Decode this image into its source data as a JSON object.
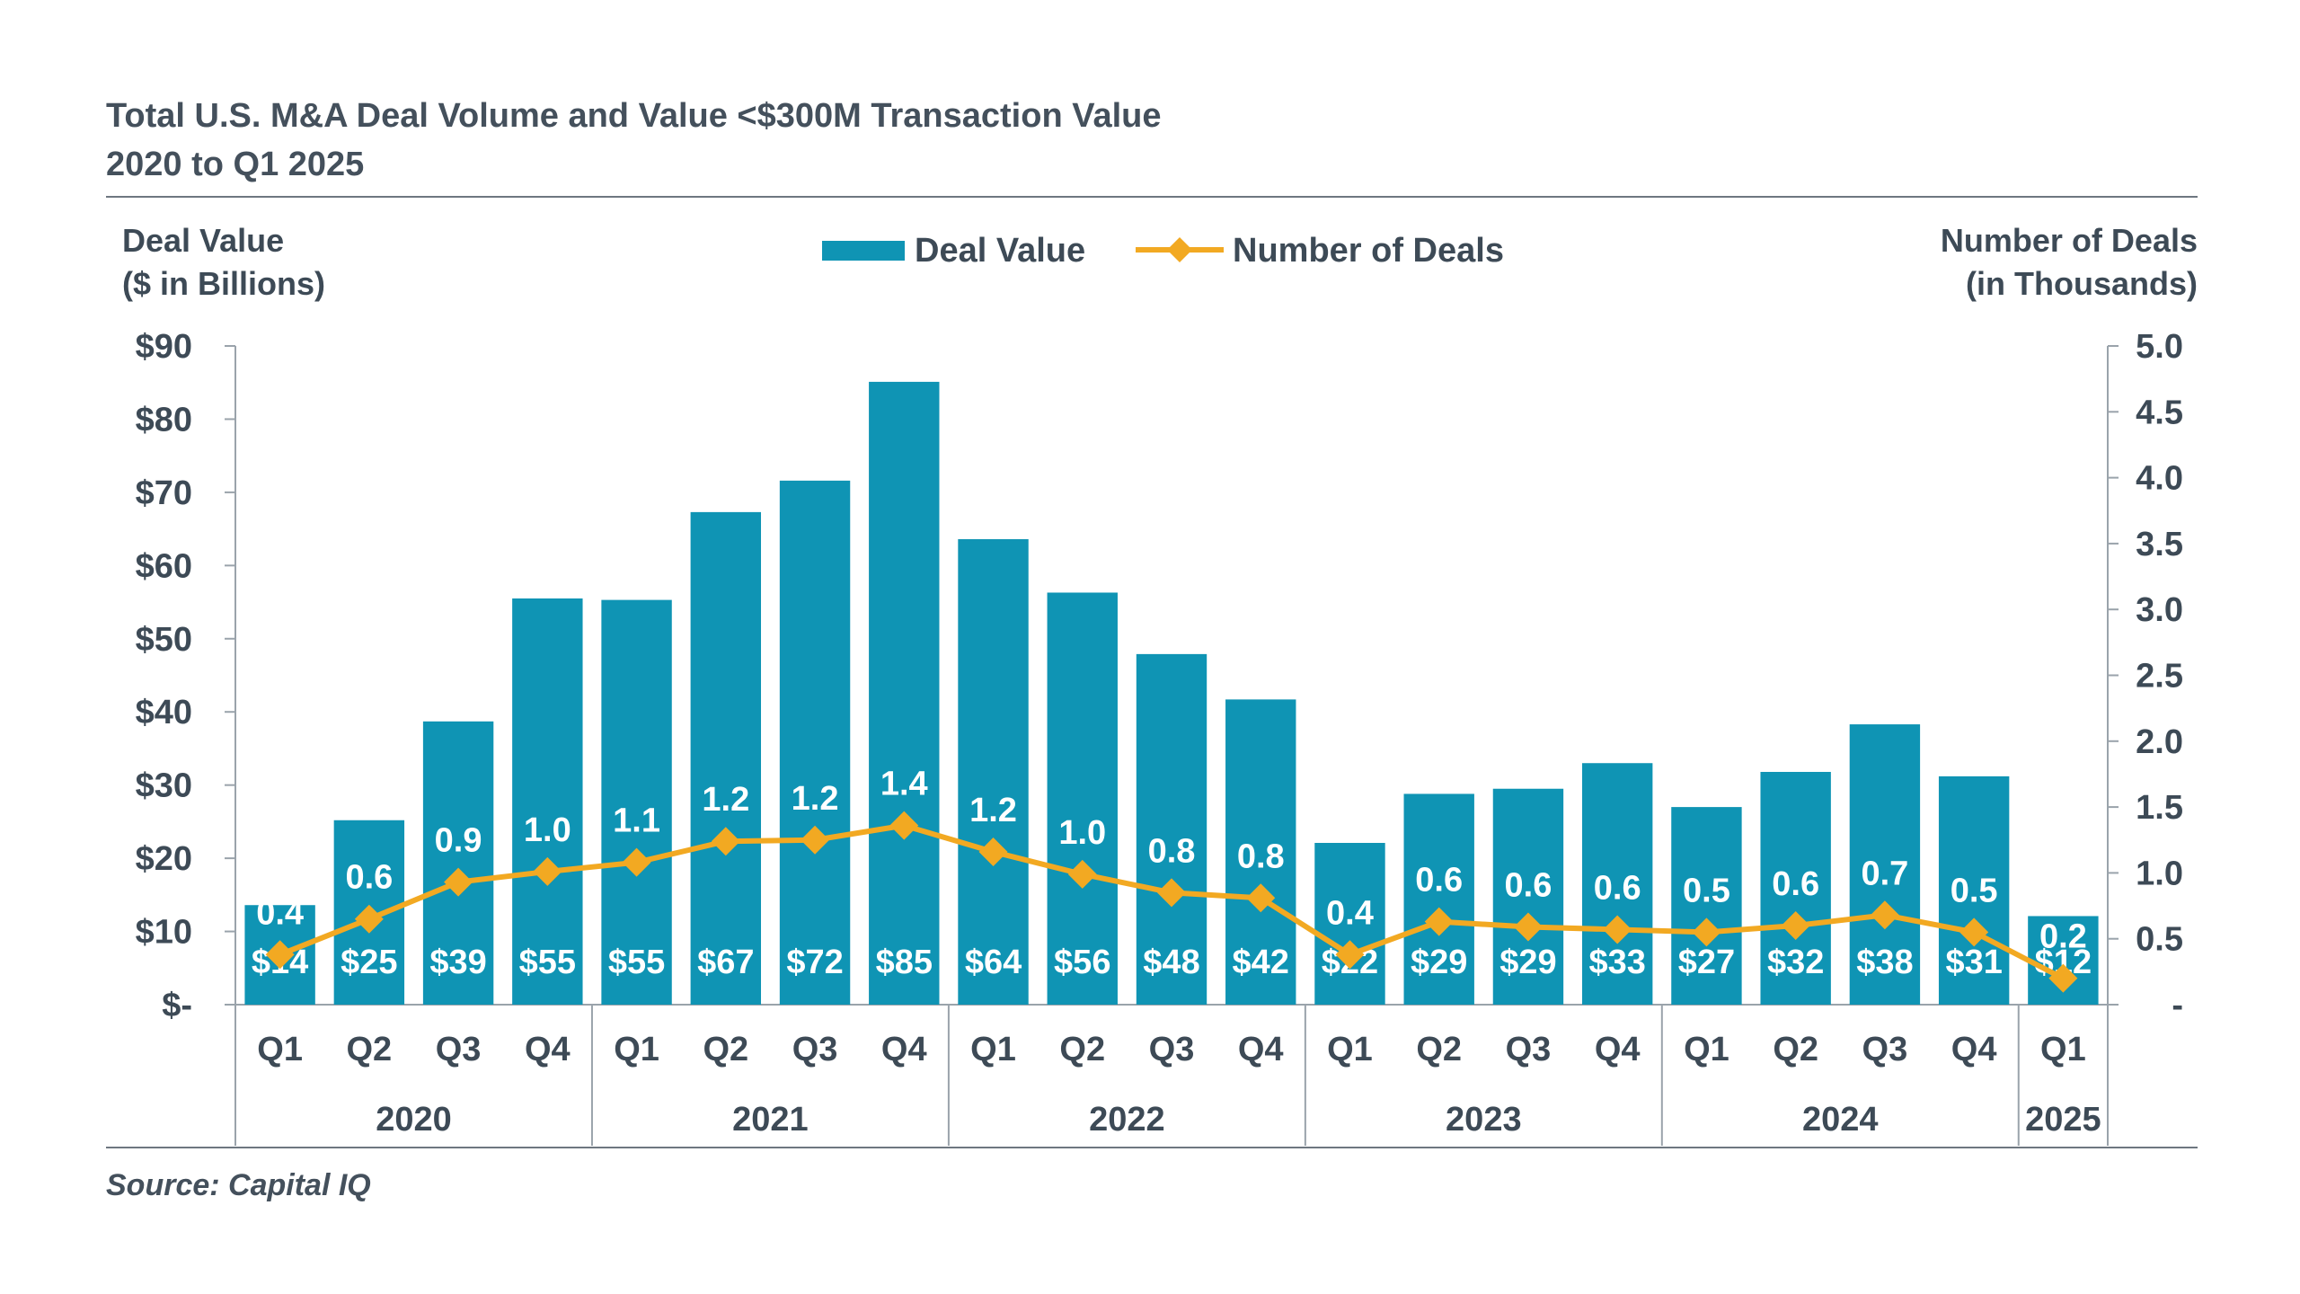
{
  "title": {
    "line1": "Total U.S. M&A Deal Volume and Value <$300M Transaction Value",
    "line2": "2020 to Q1 2025"
  },
  "source": "Source: Capital IQ",
  "colors": {
    "bar": "#0f94b4",
    "line": "#f2a922",
    "text": "#3d4a56",
    "axis": "#9aa3ab"
  },
  "chart_data": {
    "type": "bar",
    "combo": "bar + line (dual axis)",
    "left_axis_label": [
      "Deal Value",
      "($ in Billions)"
    ],
    "right_axis_label": [
      "Number of Deals",
      "(in Thousands)"
    ],
    "left_ylim": [
      0,
      90
    ],
    "right_ylim": [
      0,
      5
    ],
    "left_ticks": [
      "$-",
      "$10",
      "$20",
      "$30",
      "$40",
      "$50",
      "$60",
      "$70",
      "$80",
      "$90"
    ],
    "right_ticks": [
      "-",
      "0.5",
      "1.0",
      "1.5",
      "2.0",
      "2.5",
      "3.0",
      "3.5",
      "4.0",
      "4.5",
      "5.0"
    ],
    "legend": [
      "Deal Value",
      "Number of Deals"
    ],
    "legend_position": "top-center",
    "grid": false,
    "years": [
      {
        "label": "2020",
        "count": 4
      },
      {
        "label": "2021",
        "count": 4
      },
      {
        "label": "2022",
        "count": 4
      },
      {
        "label": "2023",
        "count": 4
      },
      {
        "label": "2024",
        "count": 4
      },
      {
        "label": "2025",
        "count": 1
      }
    ],
    "categories": [
      "Q1",
      "Q2",
      "Q3",
      "Q4",
      "Q1",
      "Q2",
      "Q3",
      "Q4",
      "Q1",
      "Q2",
      "Q3",
      "Q4",
      "Q1",
      "Q2",
      "Q3",
      "Q4",
      "Q1",
      "Q2",
      "Q3",
      "Q4",
      "Q1"
    ],
    "series": [
      {
        "name": "Deal Value",
        "axis": "left",
        "values": [
          13.6,
          25.2,
          38.7,
          55.5,
          55.3,
          67.3,
          71.6,
          85.1,
          63.6,
          56.3,
          47.9,
          41.7,
          22.1,
          28.8,
          29.5,
          33.0,
          27.0,
          31.8,
          38.3,
          31.2,
          12.1
        ],
        "labels": [
          "$14",
          "$25",
          "$39",
          "$55",
          "$55",
          "$67",
          "$72",
          "$85",
          "$64",
          "$56",
          "$48",
          "$42",
          "$22",
          "$29",
          "$29",
          "$33",
          "$27",
          "$32",
          "$38",
          "$31",
          "$12"
        ]
      },
      {
        "name": "Number of Deals",
        "axis": "right",
        "values": [
          0.38,
          0.65,
          0.93,
          1.01,
          1.08,
          1.24,
          1.25,
          1.36,
          1.16,
          0.99,
          0.85,
          0.81,
          0.38,
          0.63,
          0.59,
          0.57,
          0.55,
          0.6,
          0.68,
          0.55,
          0.2
        ],
        "labels": [
          "0.4",
          "0.6",
          "0.9",
          "1.0",
          "1.1",
          "1.2",
          "1.2",
          "1.4",
          "1.2",
          "1.0",
          "0.8",
          "0.8",
          "0.4",
          "0.6",
          "0.6",
          "0.6",
          "0.5",
          "0.6",
          "0.7",
          "0.5",
          "0.2"
        ]
      }
    ]
  }
}
